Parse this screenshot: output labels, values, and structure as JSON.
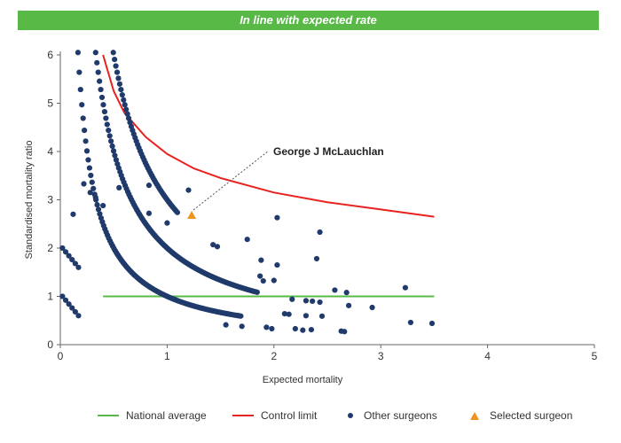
{
  "header": {
    "banner_text": "In line with expected rate"
  },
  "colors": {
    "banner": "#58b947",
    "national_average": "#58b947",
    "control_limit": "#e8231f",
    "other_surgeons": "#1f3a6b",
    "selected_surgeon": "#f0921e"
  },
  "chart_data": {
    "type": "scatter",
    "xlabel": "Expected mortality",
    "ylabel": "Standardised mortality ratio",
    "xlim": [
      0,
      5
    ],
    "ylim": [
      0,
      6
    ],
    "xticks": [
      "0",
      "1",
      "2",
      "3",
      "4",
      "5"
    ],
    "yticks": [
      "0",
      "1",
      "2",
      "3",
      "4",
      "5",
      "6"
    ],
    "legend_position": "bottom",
    "series": [
      {
        "name": "National average",
        "kind": "line",
        "x": [
          0.4,
          3.5
        ],
        "y": [
          1,
          1
        ]
      },
      {
        "name": "Control limit",
        "kind": "line",
        "x": [
          0.4,
          0.5,
          0.6,
          0.8,
          1.0,
          1.25,
          1.5,
          2.0,
          2.5,
          3.0,
          3.5
        ],
        "y": [
          6.0,
          5.25,
          4.8,
          4.3,
          3.95,
          3.65,
          3.45,
          3.15,
          2.95,
          2.8,
          2.65
        ]
      },
      {
        "name": "Other surgeons",
        "kind": "scatter",
        "curves": [
          {
            "n": 1,
            "x_start": 0.0,
            "x_end": 1.7
          },
          {
            "n": 2,
            "x_start": 0.0,
            "x_end": 1.85
          },
          {
            "n": 3,
            "x_start": 0.2,
            "x_end": 1.1
          },
          {
            "n": 4,
            "x_start": 0.3,
            "x_end": 0.35
          }
        ],
        "points": [
          [
            0.22,
            3.33
          ],
          [
            0.55,
            3.25
          ],
          [
            0.83,
            3.3
          ],
          [
            1.2,
            3.2
          ],
          [
            0.28,
            3.15
          ],
          [
            0.33,
            3.05
          ],
          [
            0.4,
            2.88
          ],
          [
            0.12,
            2.7
          ],
          [
            0.83,
            2.72
          ],
          [
            2.03,
            2.63
          ],
          [
            1.0,
            2.52
          ],
          [
            2.43,
            2.33
          ],
          [
            1.75,
            2.18
          ],
          [
            1.43,
            2.07
          ],
          [
            1.47,
            2.03
          ],
          [
            1.88,
            1.75
          ],
          [
            2.4,
            1.78
          ],
          [
            2.03,
            1.65
          ],
          [
            2.0,
            1.33
          ],
          [
            1.87,
            1.42
          ],
          [
            1.9,
            1.32
          ],
          [
            2.57,
            1.13
          ],
          [
            2.68,
            1.08
          ],
          [
            3.23,
            1.18
          ],
          [
            2.17,
            0.94
          ],
          [
            2.3,
            0.91
          ],
          [
            2.36,
            0.9
          ],
          [
            2.43,
            0.88
          ],
          [
            2.7,
            0.81
          ],
          [
            2.92,
            0.77
          ],
          [
            2.1,
            0.64
          ],
          [
            2.14,
            0.63
          ],
          [
            2.3,
            0.6
          ],
          [
            2.45,
            0.59
          ],
          [
            2.2,
            0.33
          ],
          [
            2.27,
            0.3
          ],
          [
            2.35,
            0.31
          ],
          [
            2.63,
            0.28
          ],
          [
            2.66,
            0.27
          ],
          [
            3.28,
            0.46
          ],
          [
            3.48,
            0.44
          ],
          [
            1.93,
            0.36
          ],
          [
            1.98,
            0.33
          ],
          [
            1.7,
            0.38
          ],
          [
            1.55,
            0.41
          ]
        ]
      },
      {
        "name": "Selected surgeon",
        "kind": "marker",
        "x": 1.23,
        "y": 2.68
      }
    ],
    "annotation": {
      "text": "George J McLauchlan",
      "x": 1.23,
      "y": 2.68
    }
  }
}
